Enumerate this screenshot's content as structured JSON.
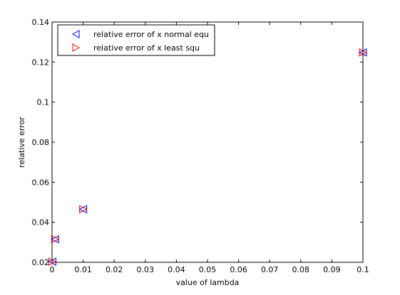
{
  "chart_data": {
    "type": "scatter",
    "title": "",
    "xlabel": "value of lambda",
    "ylabel": "relative error",
    "xlim": [
      0,
      0.1
    ],
    "ylim": [
      0.02,
      0.14
    ],
    "x_ticks": [
      0,
      0.01,
      0.02,
      0.03,
      0.04,
      0.05,
      0.06,
      0.07,
      0.08,
      0.09,
      0.1
    ],
    "x_tick_labels": [
      "0",
      "0.01",
      "0.02",
      "0.03",
      "0.04",
      "0.05",
      "0.06",
      "0.07",
      "0.08",
      "0.09",
      "0.1"
    ],
    "y_ticks": [
      0.02,
      0.04,
      0.06,
      0.08,
      0.1,
      0.12,
      0.14
    ],
    "y_tick_labels": [
      "0.02",
      "0.04",
      "0.06",
      "0.08",
      "0.1",
      "0.12",
      "0.14"
    ],
    "grid": false,
    "legend_position": "top-left",
    "series": [
      {
        "name": "relative error of x normal equ",
        "marker": "triangle-left",
        "color": "#0000ff",
        "x": [
          0.0001,
          0.001,
          0.01,
          0.1
        ],
        "y": [
          0.0203,
          0.0315,
          0.0465,
          0.1248
        ]
      },
      {
        "name": "relative error of x least squ",
        "marker": "triangle-right",
        "color": "#ff0000",
        "x": [
          0.0001,
          0.001,
          0.01,
          0.1
        ],
        "y": [
          0.0203,
          0.0315,
          0.0465,
          0.1248
        ]
      }
    ]
  }
}
